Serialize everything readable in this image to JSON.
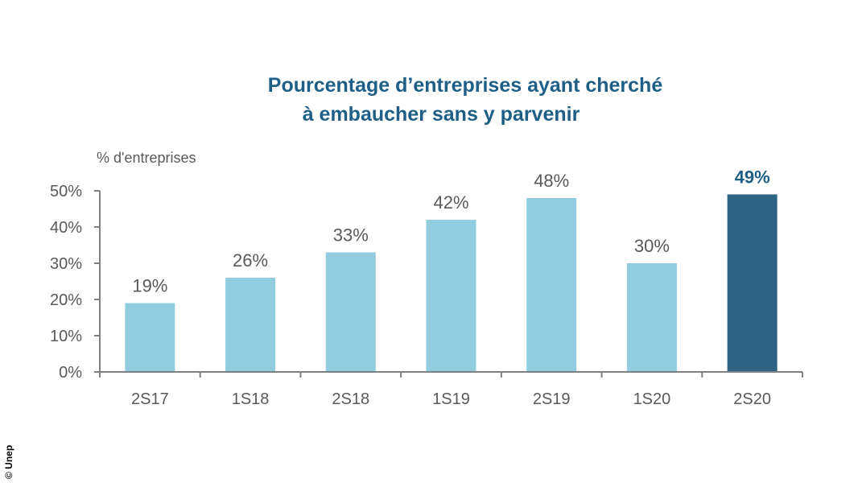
{
  "chart_data": {
    "type": "bar",
    "title_line1": "Pourcentage d’entreprises ayant cherché",
    "title_line2": "à embaucher sans y parvenir",
    "ylabel": "% d'entreprises",
    "xlabel": "",
    "categories": [
      "2S17",
      "1S18",
      "2S18",
      "1S19",
      "2S19",
      "1S20",
      "2S20"
    ],
    "values": [
      19,
      26,
      33,
      42,
      48,
      30,
      49
    ],
    "value_labels": [
      "19%",
      "26%",
      "33%",
      "42%",
      "48%",
      "30%",
      "49%"
    ],
    "ylim": [
      0,
      50
    ],
    "yticks": [
      0,
      10,
      20,
      30,
      40,
      50
    ],
    "ytick_labels": [
      "0%",
      "10%",
      "20%",
      "30%",
      "40%",
      "50%"
    ],
    "grid": false,
    "highlight_index": 6,
    "colors": {
      "bar": "#92cddf",
      "highlight": "#2e6482",
      "axis": "#808080",
      "title": "#1f5f86"
    }
  },
  "credit": "© Unep"
}
